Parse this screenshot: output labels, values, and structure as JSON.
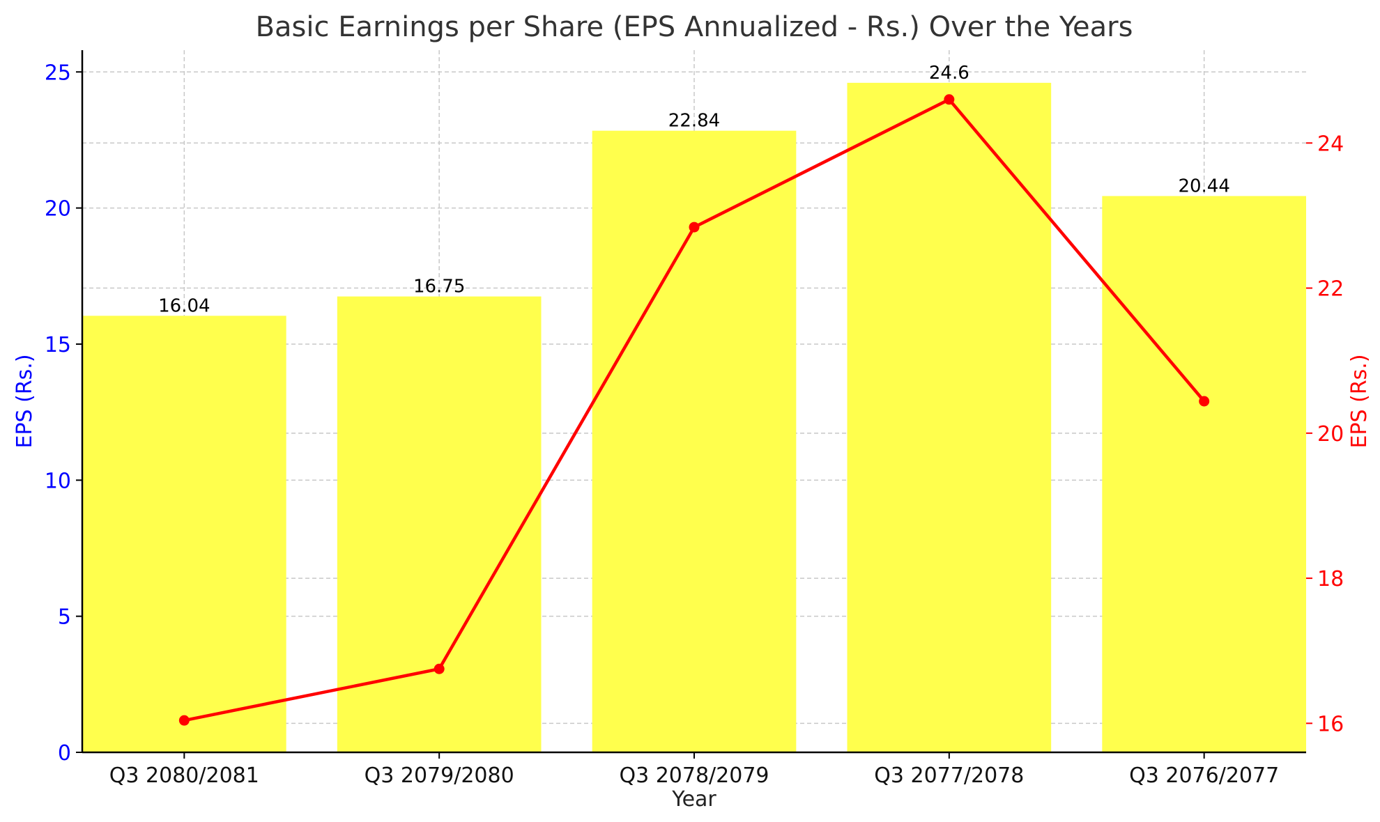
{
  "chart_data": {
    "type": "bar+line",
    "title": "Basic Earnings per Share (EPS Annualized - Rs.) Over the Years",
    "xlabel": "Year",
    "ylabel_left": "EPS (Rs.)",
    "ylabel_right": "EPS (Rs.)",
    "categories": [
      "Q3 2080/2081",
      "Q3 2079/2080",
      "Q3 2078/2079",
      "Q3 2077/2078",
      "Q3 2076/2077"
    ],
    "values": [
      16.04,
      16.75,
      22.84,
      24.6,
      20.44
    ],
    "data_labels": [
      "16.04",
      "16.75",
      "22.84",
      "24.6",
      "20.44"
    ],
    "ylim_left": [
      0,
      25.8
    ],
    "yticks_left": [
      0,
      5,
      10,
      15,
      20,
      25
    ],
    "ylim_right": [
      15.6,
      25.28
    ],
    "yticks_right": [
      16,
      18,
      20,
      22,
      24
    ],
    "grid": true,
    "colors": {
      "bar": "#ffff4d",
      "line": "#ff0000",
      "left_axis": "#0000ff",
      "right_axis": "#ff0000"
    }
  }
}
